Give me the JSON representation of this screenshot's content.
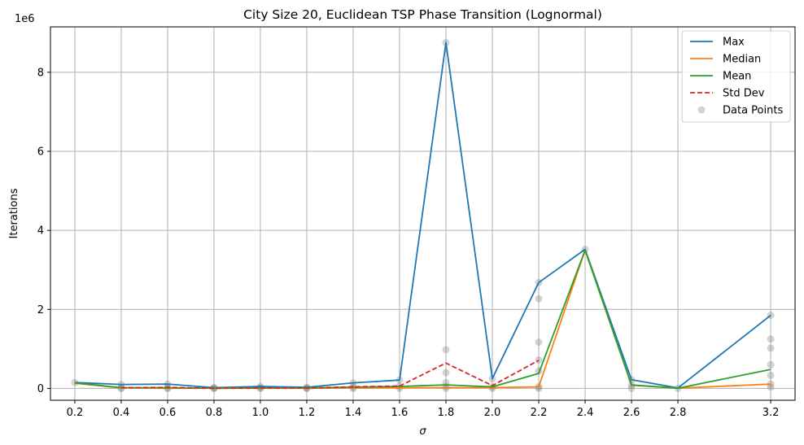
{
  "chart_data": {
    "type": "line",
    "title": "City Size 20, Euclidean TSP Phase Transition (Lognormal)",
    "xlabel": "σ",
    "ylabel": "Iterations",
    "y_multiplier_label": "1e6",
    "y_scale": 1000000,
    "x": [
      0.2,
      0.4,
      0.6,
      0.8,
      1.0,
      1.2,
      1.4,
      1.6,
      1.8,
      2.0,
      2.2,
      2.4,
      2.6,
      2.8,
      3.2
    ],
    "x_tick_labels": [
      "0.2",
      "0.4",
      "0.6",
      "0.8",
      "1.0",
      "1.2",
      "1.4",
      "1.6",
      "1.8",
      "2.0",
      "2.2",
      "2.4",
      "2.6",
      "2.8",
      "3.2"
    ],
    "y_ticks": [
      0,
      2000000,
      4000000,
      6000000,
      8000000
    ],
    "y_tick_labels": [
      "0",
      "2",
      "4",
      "6",
      "8"
    ],
    "xlim": [
      0.095,
      3.305
    ],
    "ylim": [
      -300000,
      9150000
    ],
    "grid": true,
    "legend_position": "top-right",
    "series": [
      {
        "name": "Max",
        "color": "#1f77b4",
        "style": "solid",
        "values": [
          150000,
          100000,
          110000,
          20000,
          50000,
          30000,
          140000,
          210000,
          8750000,
          250000,
          2680000,
          3520000,
          220000,
          10000,
          1850000
        ]
      },
      {
        "name": "Median",
        "color": "#ff7f0e",
        "style": "solid",
        "values": [
          130000,
          10000,
          5000,
          3000,
          5000,
          5000,
          10000,
          15000,
          20000,
          20000,
          40000,
          3500000,
          80000,
          5000,
          110000
        ]
      },
      {
        "name": "Mean",
        "color": "#2ca02c",
        "style": "solid",
        "values": [
          140000,
          20000,
          15000,
          5000,
          10000,
          10000,
          30000,
          50000,
          90000,
          40000,
          380000,
          3500000,
          90000,
          5000,
          480000
        ]
      },
      {
        "name": "Std Dev",
        "color": "#d62728",
        "style": "dashed",
        "values": [
          null,
          20000,
          25000,
          5000,
          10000,
          10000,
          40000,
          60000,
          640000,
          70000,
          710000,
          null,
          60000,
          null,
          null
        ]
      }
    ],
    "scatter": {
      "name": "Data Points",
      "color": "#808080",
      "points": [
        [
          0.2,
          150000
        ],
        [
          0.4,
          100000
        ],
        [
          0.4,
          10000
        ],
        [
          0.4,
          0
        ],
        [
          0.6,
          110000
        ],
        [
          0.6,
          10000
        ],
        [
          0.6,
          0
        ],
        [
          0.8,
          20000
        ],
        [
          0.8,
          5000
        ],
        [
          0.8,
          0
        ],
        [
          1.0,
          50000
        ],
        [
          1.0,
          10000
        ],
        [
          1.0,
          0
        ],
        [
          1.2,
          30000
        ],
        [
          1.2,
          5000
        ],
        [
          1.2,
          0
        ],
        [
          1.4,
          140000
        ],
        [
          1.4,
          30000
        ],
        [
          1.4,
          0
        ],
        [
          1.6,
          210000
        ],
        [
          1.6,
          50000
        ],
        [
          1.6,
          0
        ],
        [
          1.8,
          8750000
        ],
        [
          1.8,
          980000
        ],
        [
          1.8,
          400000
        ],
        [
          1.8,
          150000
        ],
        [
          1.8,
          50000
        ],
        [
          1.8,
          0
        ],
        [
          2.0,
          250000
        ],
        [
          2.0,
          40000
        ],
        [
          2.0,
          0
        ],
        [
          2.2,
          2680000
        ],
        [
          2.2,
          2270000
        ],
        [
          2.2,
          1170000
        ],
        [
          2.2,
          720000
        ],
        [
          2.2,
          440000
        ],
        [
          2.2,
          40000
        ],
        [
          2.2,
          0
        ],
        [
          2.4,
          3520000
        ],
        [
          2.6,
          220000
        ],
        [
          2.6,
          80000
        ],
        [
          2.6,
          0
        ],
        [
          2.8,
          0
        ],
        [
          3.2,
          1850000
        ],
        [
          3.2,
          1250000
        ],
        [
          3.2,
          1020000
        ],
        [
          3.2,
          600000
        ],
        [
          3.2,
          330000
        ],
        [
          3.2,
          110000
        ],
        [
          3.2,
          30000
        ]
      ]
    }
  }
}
